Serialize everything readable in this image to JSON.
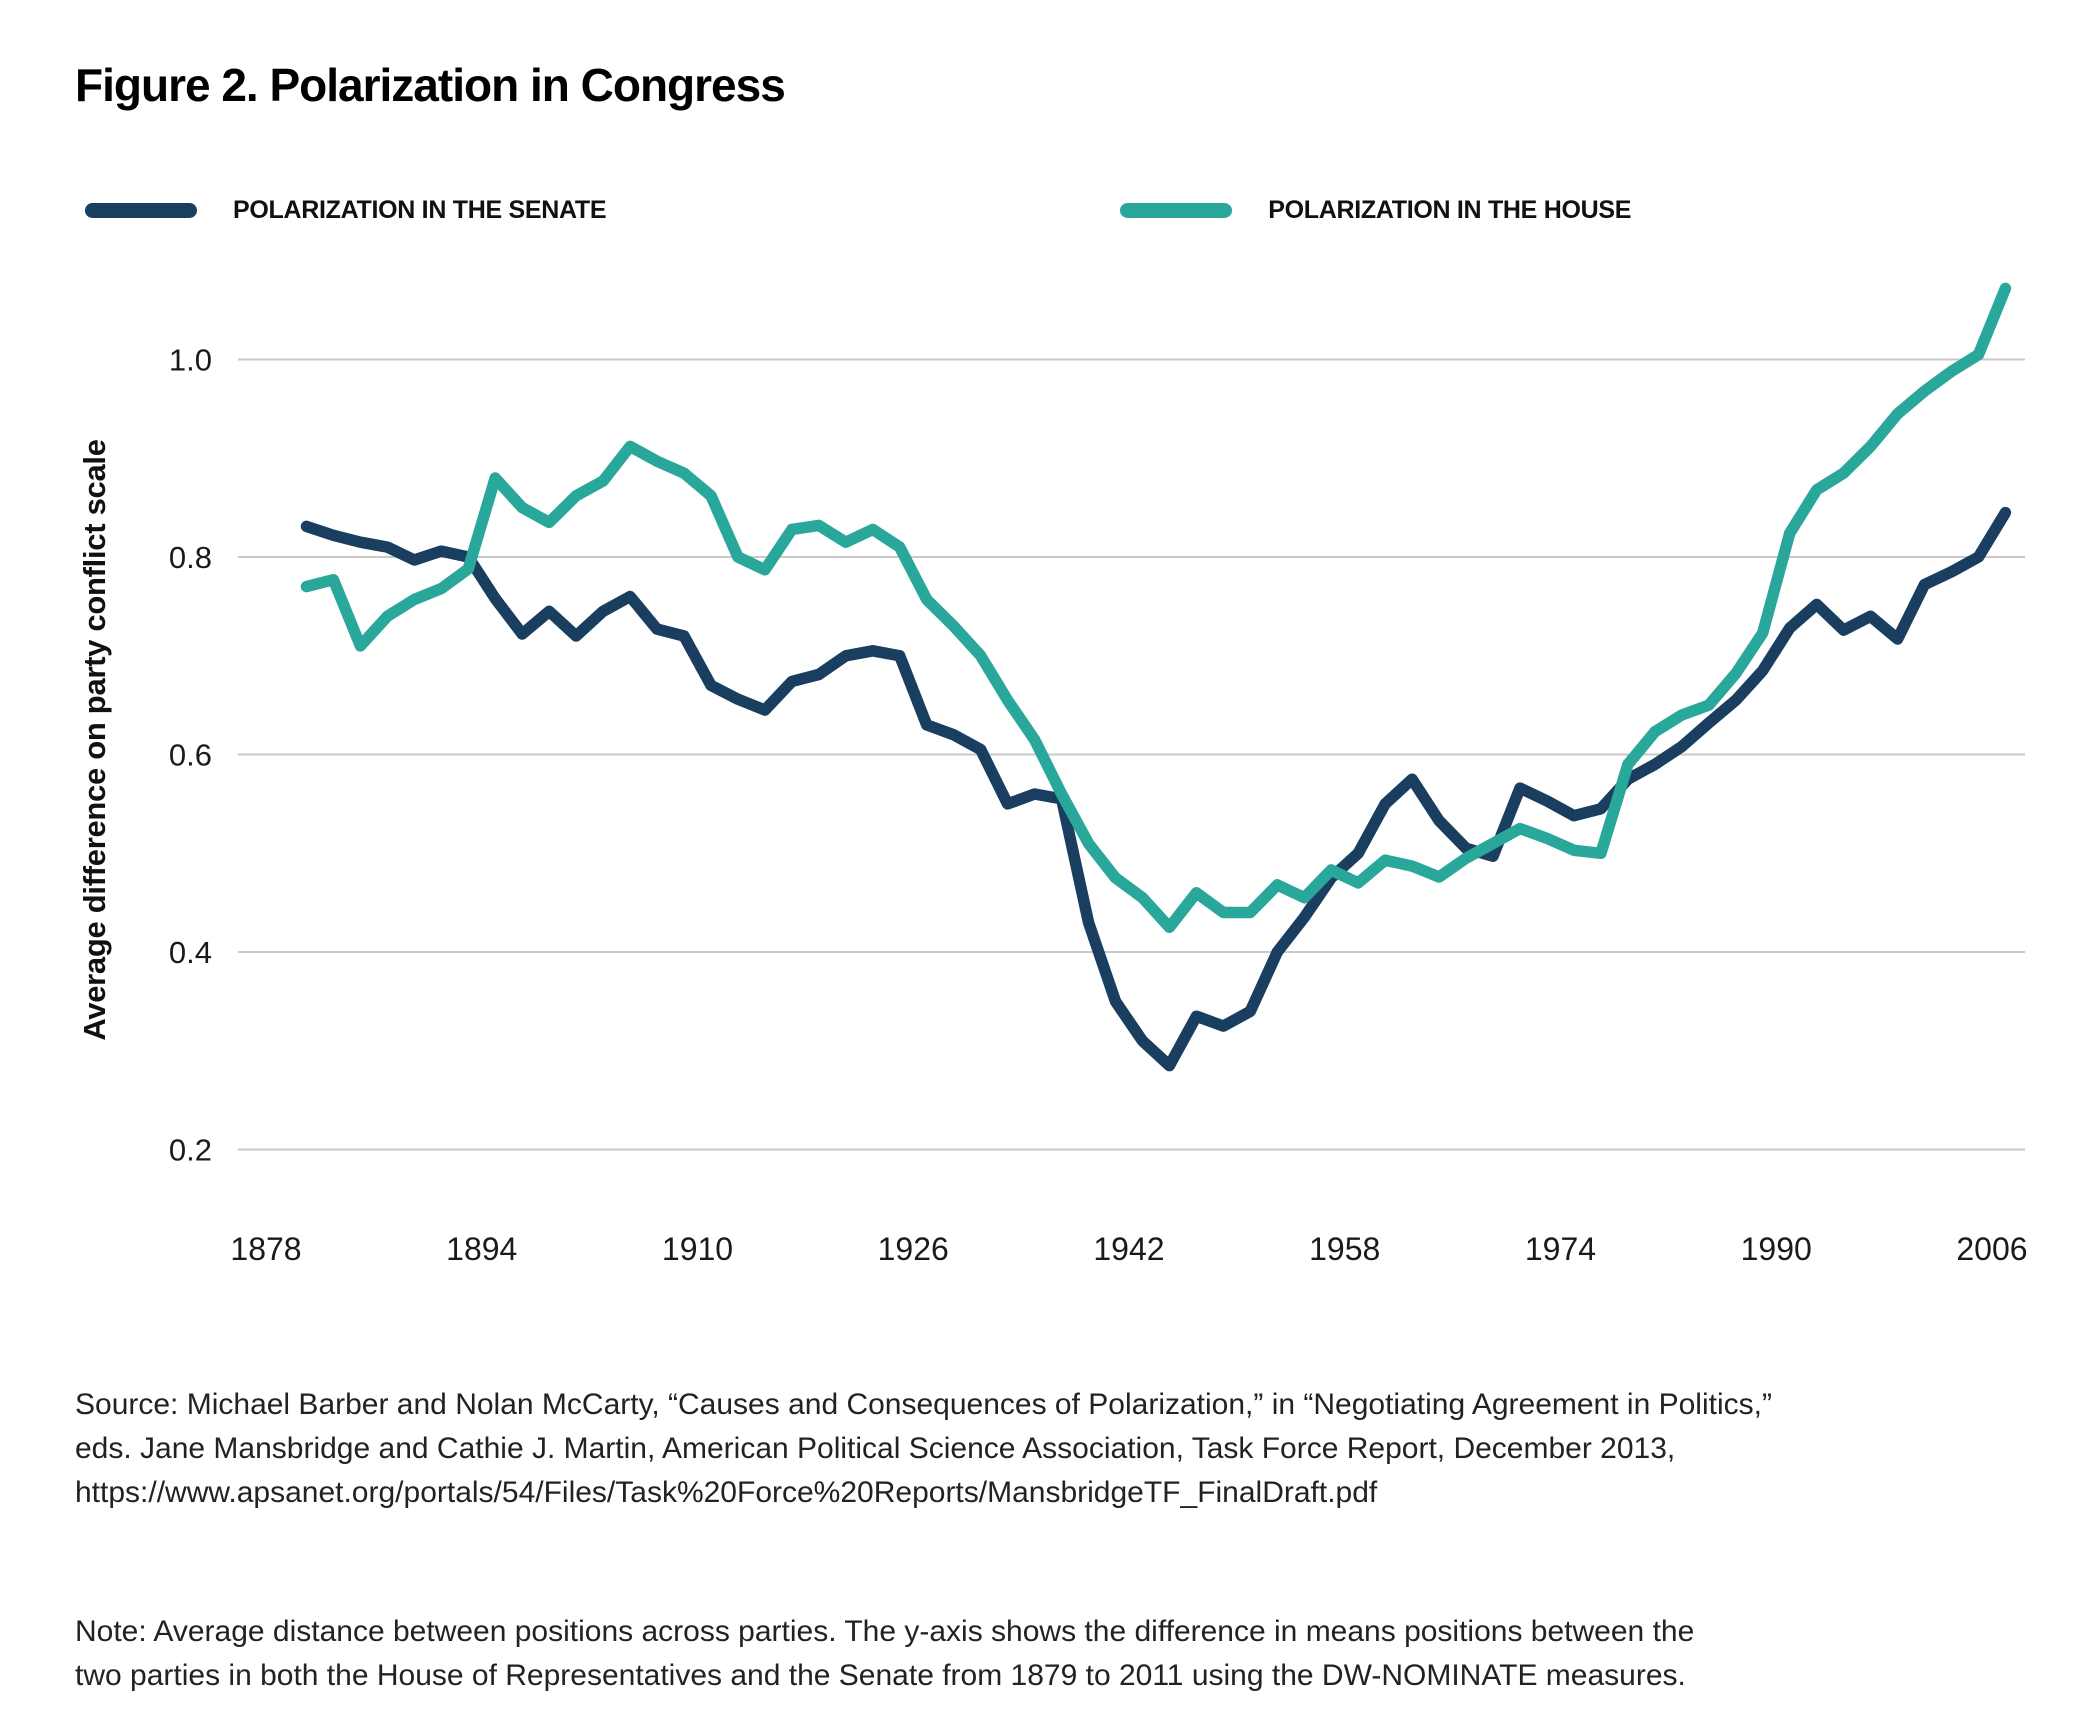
{
  "title": "Figure 2. Polarization in Congress",
  "colors": {
    "senate": "#1A3E5F",
    "house": "#2AA79B",
    "grid": "#C9C9C9",
    "tick_text": "#1A1A1A",
    "axis_label_text": "#111111"
  },
  "legend": [
    {
      "label": "POLARIZATION IN THE SENATE",
      "color": "#1A3E5F"
    },
    {
      "label": "POLARIZATION IN THE HOUSE",
      "color": "#2AA79B"
    }
  ],
  "chart_data": {
    "type": "line",
    "title": "Figure 2. Polarization in Congress",
    "xlabel": "",
    "ylabel": "Average difference on party conflict scale",
    "grid": "horizontal",
    "legend_position": "top",
    "ylim": [
      0.13,
      1.12
    ],
    "xlim": [
      1876,
      2010
    ],
    "x_ticks": [
      "1878",
      "1894",
      "1910",
      "1926",
      "1942",
      "1958",
      "1974",
      "1990",
      "2006"
    ],
    "y_ticks": [
      {
        "label": "1.0",
        "value": 1.0
      },
      {
        "label": "0.8",
        "value": 0.8
      },
      {
        "label": "0.6",
        "value": 0.6
      },
      {
        "label": "0.4",
        "value": 0.4
      },
      {
        "label": "0.2",
        "value": 0.2
      }
    ],
    "x": [
      1881,
      1883,
      1885,
      1887,
      1889,
      1891,
      1893,
      1895,
      1897,
      1899,
      1901,
      1903,
      1905,
      1907,
      1909,
      1911,
      1913,
      1915,
      1917,
      1919,
      1921,
      1923,
      1925,
      1927,
      1929,
      1931,
      1933,
      1935,
      1937,
      1939,
      1941,
      1943,
      1945,
      1947,
      1949,
      1951,
      1953,
      1955,
      1957,
      1959,
      1961,
      1963,
      1965,
      1967,
      1969,
      1971,
      1973,
      1975,
      1977,
      1979,
      1981,
      1983,
      1985,
      1987,
      1989,
      1991,
      1993,
      1995,
      1997,
      1999,
      2001,
      2003,
      2005,
      2007
    ],
    "series": [
      {
        "name": "Polarization in the Senate",
        "color": "#1A3E5F",
        "values": [
          0.831,
          0.822,
          0.815,
          0.81,
          0.797,
          0.806,
          0.8,
          0.758,
          0.722,
          0.745,
          0.72,
          0.745,
          0.76,
          0.727,
          0.72,
          0.67,
          0.656,
          0.645,
          0.674,
          0.681,
          0.7,
          0.705,
          0.7,
          0.63,
          0.62,
          0.605,
          0.55,
          0.56,
          0.555,
          0.43,
          0.35,
          0.31,
          0.285,
          0.335,
          0.325,
          0.34,
          0.4,
          0.435,
          0.475,
          0.5,
          0.55,
          0.575,
          0.533,
          0.505,
          0.497,
          0.566,
          0.553,
          0.538,
          0.545,
          0.575,
          0.59,
          0.608,
          0.632,
          0.655,
          0.685,
          0.728,
          0.752,
          0.726,
          0.74,
          0.717,
          0.772,
          0.785,
          0.8,
          0.845
        ]
      },
      {
        "name": "Polarization in the House",
        "color": "#2AA79B",
        "values": [
          0.77,
          0.777,
          0.71,
          0.74,
          0.757,
          0.768,
          0.788,
          0.88,
          0.85,
          0.835,
          0.862,
          0.877,
          0.912,
          0.897,
          0.885,
          0.862,
          0.8,
          0.787,
          0.828,
          0.832,
          0.815,
          0.828,
          0.81,
          0.757,
          0.73,
          0.7,
          0.655,
          0.615,
          0.56,
          0.51,
          0.475,
          0.455,
          0.425,
          0.46,
          0.44,
          0.44,
          0.468,
          0.455,
          0.483,
          0.47,
          0.493,
          0.487,
          0.476,
          0.495,
          0.51,
          0.525,
          0.515,
          0.503,
          0.5,
          0.59,
          0.623,
          0.64,
          0.65,
          0.682,
          0.723,
          0.824,
          0.868,
          0.885,
          0.912,
          0.945,
          0.968,
          0.988,
          1.005,
          1.072
        ]
      }
    ]
  },
  "source_lines": [
    "Source: Michael Barber and Nolan McCarty, “Causes and Consequences of Polarization,” in “Negotiating Agreement in Politics,”",
    "eds. Jane Mansbridge and Cathie J. Martin, American Political Science Association, Task Force Report, December 2013,",
    "https://www.apsanet.org/portals/54/Files/Task%20Force%20Reports/MansbridgeTF_FinalDraft.pdf"
  ],
  "note_lines": [
    "Note: Average distance between positions across parties. The y-axis shows the difference in means positions between the",
    "two parties in both the House of Representatives and the Senate from 1879 to 2011 using the DW-NOMINATE measures."
  ]
}
